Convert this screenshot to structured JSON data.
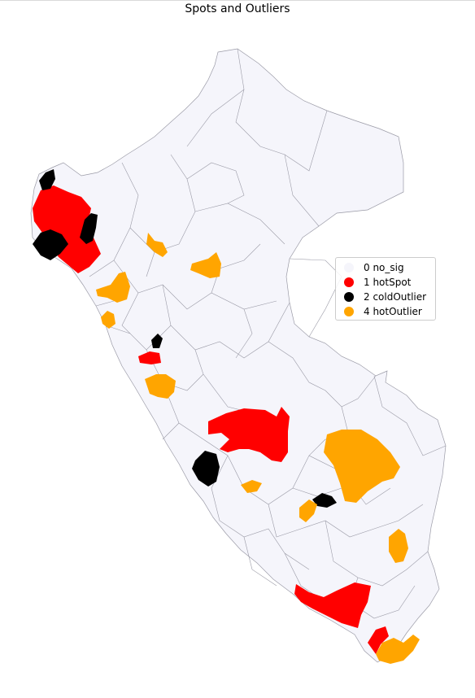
{
  "title": "Spots and Outliers",
  "legend": [
    {
      "label": "0 no_sig",
      "color": "#f5f5fb"
    },
    {
      "label": "1 hotSpot",
      "color": "#ff0000"
    },
    {
      "label": "2 coldOutlier",
      "color": "#000000"
    },
    {
      "label": "4 hotOutlier",
      "color": "#ffa500"
    }
  ],
  "colors": {
    "no_sig": "#f5f5fb",
    "hotSpot": "#ff0000",
    "coldOutlier": "#000000",
    "hotOutlier": "#ffa500",
    "border": "#9a9aa6"
  }
}
